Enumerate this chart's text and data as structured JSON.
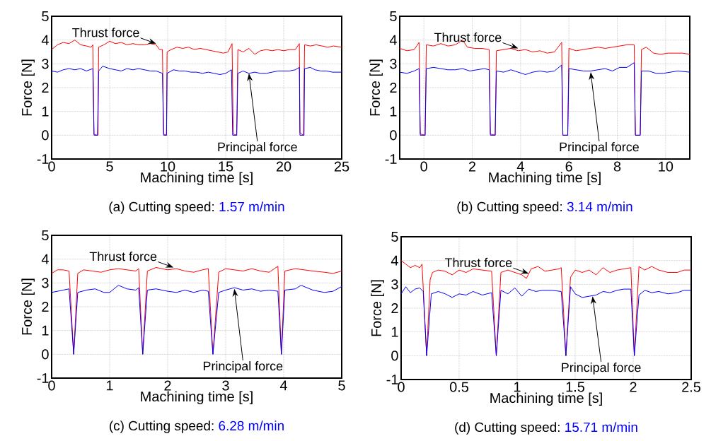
{
  "chart_data": [
    {
      "type": "line",
      "title": "(a) Cutting speed:",
      "subtitle": "1.57 m/min",
      "xlabel": "Machining time [s]",
      "ylabel": "Force [N]",
      "xlim": [
        0,
        25
      ],
      "ylim": [
        -1,
        5
      ],
      "xticks": [
        0,
        5,
        10,
        15,
        20,
        25
      ],
      "yticks": [
        -1,
        0,
        1,
        2,
        3,
        4,
        5
      ],
      "grid": true,
      "annotations": [
        {
          "text": "Thrust force",
          "x": 9,
          "y": 3.85
        },
        {
          "text": "Principal force",
          "x": 17,
          "y": 2.6
        }
      ],
      "series": [
        {
          "color": "#ff0000",
          "x": [
            0,
            0.5,
            1,
            1.5,
            2,
            2.5,
            3,
            3.4,
            3.55,
            3.65,
            3.9,
            4.0,
            4.05,
            4.5,
            5,
            5.5,
            6,
            6.5,
            7,
            7.5,
            8,
            8.5,
            9,
            9.3,
            9.55,
            9.65,
            9.9,
            9.95,
            10.3,
            10.8,
            11.3,
            11.8,
            12.3,
            12.8,
            13.3,
            13.8,
            14.3,
            14.8,
            15.2,
            15.5,
            15.55,
            15.65,
            15.95,
            16.05,
            16.5,
            17,
            17.5,
            18,
            18.5,
            19,
            19.5,
            20,
            20.5,
            21,
            21.35,
            21.4,
            21.7,
            21.8,
            22.3,
            22.8,
            23.3,
            23.8,
            24.3,
            25
          ],
          "values": [
            3.6,
            3.8,
            3.9,
            3.85,
            4.0,
            3.8,
            3.75,
            3.7,
            3.8,
            0.05,
            0,
            0,
            3.7,
            3.8,
            3.95,
            3.85,
            3.9,
            3.8,
            3.85,
            3.8,
            3.8,
            3.85,
            3.8,
            3.6,
            3.6,
            0.05,
            0,
            3.5,
            3.6,
            3.7,
            3.65,
            3.7,
            3.6,
            3.65,
            3.6,
            3.55,
            3.5,
            3.45,
            3.5,
            3.8,
            3.85,
            0.05,
            0,
            3.6,
            3.5,
            3.65,
            3.4,
            3.55,
            3.6,
            3.55,
            3.6,
            3.55,
            3.6,
            3.6,
            3.85,
            0.1,
            0,
            3.8,
            3.75,
            3.8,
            3.75,
            3.7,
            3.75,
            3.7
          ]
        },
        {
          "color": "#0000ff",
          "x": [
            0,
            0.5,
            1,
            1.5,
            2,
            2.5,
            3,
            3.55,
            3.65,
            3.95,
            4.05,
            4.4,
            5,
            5.5,
            6,
            6.5,
            7,
            7.5,
            8,
            8.5,
            9,
            9.55,
            9.65,
            9.9,
            9.95,
            10.5,
            11,
            11.5,
            12,
            12.5,
            13,
            13.5,
            14,
            14.5,
            15,
            15.5,
            15.6,
            15.95,
            16.05,
            16.5,
            17,
            17.5,
            18,
            18.5,
            19,
            19.5,
            20,
            20.5,
            21,
            21.35,
            21.4,
            21.75,
            21.8,
            22.3,
            22.7,
            23.2,
            23.7,
            24.2,
            25
          ],
          "values": [
            2.7,
            2.65,
            2.75,
            2.8,
            2.75,
            2.8,
            2.7,
            2.8,
            0,
            0,
            2.7,
            2.9,
            2.8,
            2.75,
            2.7,
            2.8,
            2.75,
            2.8,
            2.75,
            2.7,
            2.7,
            2.6,
            0,
            0,
            2.6,
            2.75,
            2.7,
            2.7,
            2.65,
            2.65,
            2.6,
            2.65,
            2.6,
            2.55,
            2.6,
            2.75,
            0,
            0,
            2.6,
            2.7,
            2.6,
            2.65,
            2.6,
            2.6,
            2.65,
            2.7,
            2.7,
            2.7,
            2.75,
            2.85,
            0,
            0,
            2.8,
            2.85,
            2.75,
            2.7,
            2.7,
            2.65,
            2.65
          ]
        }
      ]
    },
    {
      "type": "line",
      "title": "(b) Cutting speed:",
      "subtitle": "3.14 m/min",
      "xlabel": "Machining time [s]",
      "ylabel": "Force [N]",
      "xlim": [
        -1,
        11
      ],
      "ylim": [
        -1,
        5
      ],
      "xticks": [
        0,
        2,
        4,
        6,
        8,
        10
      ],
      "yticks": [
        -1,
        0,
        1,
        2,
        3,
        4,
        5
      ],
      "grid": true,
      "annotations": [
        {
          "text": "Thrust force",
          "x": 3.9,
          "y": 3.65
        },
        {
          "text": "Principal force",
          "x": 6.9,
          "y": 2.65
        }
      ],
      "series": [
        {
          "color": "#ff0000",
          "x": [
            -1,
            -0.7,
            -0.4,
            -0.2,
            -0.15,
            0.05,
            0.1,
            0.4,
            0.7,
            1,
            1.3,
            1.6,
            1.8,
            2.1,
            2.4,
            2.7,
            2.75,
            2.95,
            3.0,
            3.3,
            3.6,
            3.9,
            4.2,
            4.5,
            4.8,
            5.1,
            5.4,
            5.7,
            5.75,
            5.95,
            6.0,
            6.3,
            6.6,
            6.9,
            7.2,
            7.5,
            7.8,
            8.1,
            8.4,
            8.7,
            8.75,
            8.95,
            9.0,
            9.2,
            9.5,
            9.8,
            10.1,
            10.4,
            10.7,
            11
          ],
          "values": [
            3.65,
            3.55,
            3.6,
            3.9,
            0.05,
            0,
            3.8,
            3.75,
            3.85,
            3.75,
            3.8,
            4.0,
            3.7,
            3.65,
            3.65,
            3.6,
            0.05,
            0,
            3.55,
            3.6,
            3.65,
            3.55,
            3.6,
            3.5,
            3.55,
            3.45,
            3.5,
            3.9,
            0,
            0,
            3.65,
            3.55,
            3.6,
            3.65,
            3.7,
            3.65,
            3.7,
            3.75,
            3.8,
            3.8,
            0,
            0,
            3.6,
            3.7,
            3.45,
            3.4,
            3.45,
            3.45,
            3.45,
            3.4
          ]
        },
        {
          "color": "#0000ff",
          "x": [
            -1,
            -0.7,
            -0.4,
            -0.2,
            -0.15,
            0.05,
            0.1,
            0.4,
            0.7,
            1,
            1.3,
            1.6,
            1.9,
            2.2,
            2.5,
            2.7,
            2.75,
            2.95,
            3.0,
            3.3,
            3.6,
            3.9,
            4.2,
            4.5,
            4.8,
            5.1,
            5.4,
            5.7,
            5.75,
            5.95,
            6.0,
            6.3,
            6.6,
            6.9,
            7.2,
            7.5,
            7.8,
            8.1,
            8.4,
            8.7,
            8.75,
            8.95,
            9.0,
            9.3,
            9.6,
            9.9,
            10.2,
            10.5,
            11
          ],
          "values": [
            2.65,
            2.6,
            2.7,
            2.8,
            0,
            0,
            2.8,
            2.85,
            2.8,
            2.75,
            2.75,
            2.8,
            2.7,
            2.75,
            2.8,
            2.75,
            0,
            0,
            2.7,
            2.65,
            2.75,
            2.65,
            2.55,
            2.65,
            2.7,
            2.65,
            2.7,
            2.95,
            0,
            0,
            2.8,
            2.75,
            2.7,
            2.7,
            2.75,
            2.8,
            2.7,
            2.85,
            2.85,
            3.05,
            0,
            0,
            2.7,
            2.7,
            2.6,
            2.6,
            2.65,
            2.7,
            2.65
          ]
        }
      ]
    },
    {
      "type": "line",
      "title": "(c) Cutting speed:",
      "subtitle": "6.28 m/min",
      "xlabel": "Machining time [s]",
      "ylabel": "Force [N]",
      "xlim": [
        0,
        5
      ],
      "ylim": [
        -1,
        5
      ],
      "xticks": [
        0,
        1,
        2,
        3,
        4,
        5
      ],
      "yticks": [
        -1,
        0,
        1,
        2,
        3,
        4,
        5
      ],
      "grid": true,
      "annotations": [
        {
          "text": "Thrust force",
          "x": 2.1,
          "y": 3.65
        },
        {
          "text": "Principal force",
          "x": 3.15,
          "y": 2.75
        }
      ],
      "series": [
        {
          "color": "#ff0000",
          "x": [
            0,
            0.1,
            0.2,
            0.3,
            0.38,
            0.45,
            0.55,
            0.7,
            0.85,
            1,
            1.15,
            1.3,
            1.45,
            1.5,
            1.57,
            1.65,
            1.8,
            2,
            2.15,
            2.3,
            2.45,
            2.6,
            2.7,
            2.78,
            2.88,
            3,
            3.15,
            3.3,
            3.45,
            3.6,
            3.75,
            3.9,
            3.96,
            4.02,
            4.2,
            4.35,
            4.5,
            4.7,
            4.85,
            5
          ],
          "values": [
            3.4,
            3.55,
            3.55,
            3.5,
            0,
            3.4,
            3.55,
            3.5,
            3.45,
            3.55,
            3.6,
            3.55,
            3.5,
            3.6,
            0,
            3.5,
            3.65,
            3.55,
            3.6,
            3.5,
            3.45,
            3.55,
            3.6,
            0,
            3.45,
            3.6,
            3.55,
            3.5,
            3.6,
            3.5,
            3.45,
            3.7,
            0,
            3.5,
            3.6,
            3.55,
            3.5,
            3.45,
            3.4,
            3.5
          ]
        },
        {
          "color": "#0000ff",
          "x": [
            0,
            0.1,
            0.2,
            0.3,
            0.38,
            0.45,
            0.6,
            0.75,
            0.9,
            1,
            1.15,
            1.3,
            1.45,
            1.5,
            1.57,
            1.65,
            1.8,
            2,
            2.15,
            2.3,
            2.45,
            2.6,
            2.7,
            2.78,
            2.88,
            3,
            3.15,
            3.3,
            3.45,
            3.6,
            3.75,
            3.9,
            3.96,
            4.02,
            4.2,
            4.3,
            4.5,
            4.7,
            4.85,
            5
          ],
          "values": [
            2.6,
            2.65,
            2.7,
            2.75,
            0,
            2.6,
            2.7,
            2.75,
            2.6,
            2.6,
            2.9,
            2.75,
            2.7,
            2.8,
            0,
            2.7,
            2.75,
            2.65,
            2.6,
            2.7,
            2.6,
            2.7,
            2.65,
            0,
            2.6,
            2.7,
            2.8,
            2.7,
            2.75,
            2.65,
            2.7,
            2.65,
            0,
            2.7,
            2.75,
            2.9,
            2.7,
            2.6,
            2.65,
            2.85
          ]
        }
      ]
    },
    {
      "type": "line",
      "title": "(d) Cutting speed:",
      "subtitle": "15.71 m/min",
      "xlabel": "Machining time [s]",
      "ylabel": "Force [N]",
      "xlim": [
        0,
        2.5
      ],
      "ylim": [
        -1,
        5
      ],
      "xticks": [
        0,
        0.5,
        1,
        1.5,
        2,
        2.5
      ],
      "yticks": [
        -1,
        0,
        1,
        2,
        3,
        4,
        5
      ],
      "grid": true,
      "annotations": [
        {
          "text": "Thrust force",
          "x": 1.1,
          "y": 3.45
        },
        {
          "text": "Principal force",
          "x": 1.65,
          "y": 2.5
        }
      ],
      "series": [
        {
          "color": "#ff0000",
          "x": [
            0,
            0.04,
            0.08,
            0.12,
            0.16,
            0.18,
            0.22,
            0.25,
            0.27,
            0.32,
            0.38,
            0.44,
            0.5,
            0.56,
            0.62,
            0.7,
            0.78,
            0.82,
            0.86,
            0.92,
            0.98,
            1.04,
            1.08,
            1.12,
            1.18,
            1.24,
            1.3,
            1.36,
            1.38,
            1.42,
            1.46,
            1.5,
            1.56,
            1.62,
            1.68,
            1.74,
            1.8,
            1.86,
            1.92,
            1.98,
            2.01,
            2.05,
            2.1,
            2.16,
            2.22,
            2.3,
            2.38,
            2.44,
            2.5
          ],
          "values": [
            4.0,
            3.85,
            3.7,
            3.8,
            3.7,
            3.85,
            0,
            3.2,
            3.5,
            3.6,
            3.55,
            3.4,
            3.6,
            3.5,
            3.65,
            3.6,
            3.55,
            0,
            3.5,
            3.6,
            3.5,
            3.4,
            3.25,
            3.65,
            3.75,
            3.55,
            3.6,
            3.65,
            3.7,
            0,
            3.3,
            3.6,
            3.5,
            3.6,
            3.4,
            3.7,
            3.5,
            3.6,
            3.65,
            3.7,
            0,
            3.75,
            3.6,
            3.75,
            3.6,
            3.5,
            3.5,
            3.6,
            3.6
          ]
        },
        {
          "color": "#0000ff",
          "x": [
            0,
            0.04,
            0.08,
            0.12,
            0.16,
            0.19,
            0.22,
            0.26,
            0.32,
            0.38,
            0.44,
            0.5,
            0.56,
            0.62,
            0.7,
            0.78,
            0.82,
            0.86,
            0.92,
            0.98,
            1.04,
            1.1,
            1.16,
            1.22,
            1.3,
            1.38,
            1.42,
            1.46,
            1.5,
            1.56,
            1.62,
            1.68,
            1.74,
            1.8,
            1.86,
            1.92,
            1.98,
            2.01,
            2.05,
            2.1,
            2.16,
            2.22,
            2.3,
            2.38,
            2.44,
            2.5
          ],
          "values": [
            2.6,
            2.9,
            2.65,
            2.8,
            2.85,
            2.7,
            0,
            2.6,
            2.7,
            2.6,
            2.45,
            2.6,
            2.55,
            2.7,
            2.55,
            2.65,
            0,
            2.75,
            2.6,
            2.85,
            2.5,
            2.8,
            2.7,
            2.75,
            2.75,
            2.7,
            0,
            2.9,
            2.6,
            2.45,
            2.5,
            2.55,
            2.7,
            2.65,
            2.75,
            2.8,
            2.8,
            0,
            2.55,
            2.75,
            2.65,
            2.7,
            2.6,
            2.65,
            2.75,
            2.75
          ]
        }
      ]
    }
  ]
}
